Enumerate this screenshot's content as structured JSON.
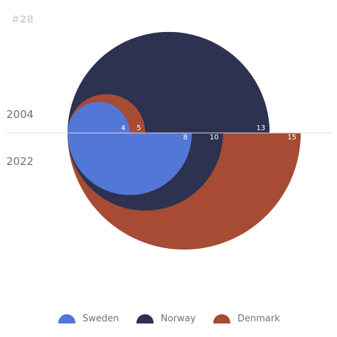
{
  "chart_id": "#28",
  "chart_data": {
    "type": "area",
    "periods": [
      "2004",
      "2022"
    ],
    "series": [
      {
        "name": "Sweden",
        "color": "#5277d6",
        "values": [
          4,
          8
        ]
      },
      {
        "name": "Norway",
        "color": "#2c3250",
        "values": [
          13,
          10
        ]
      },
      {
        "name": "Denmark",
        "color": "#a74b35",
        "values": [
          5,
          15
        ]
      }
    ]
  }
}
